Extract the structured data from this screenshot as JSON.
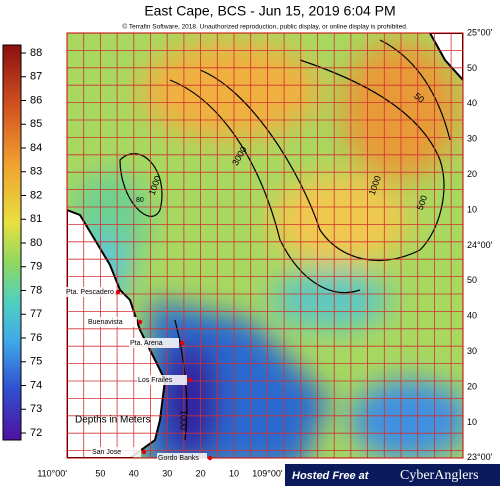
{
  "header": {
    "title": "East Cape, BCS - Jun 15, 2019 6:04 PM",
    "copyright": "© Terrafin Software,  2018.  Unauthorized reproduction, public display, or online display is prohibited."
  },
  "colorbar": {
    "ticks": [
      88,
      87,
      86,
      85,
      84,
      83,
      82,
      81,
      80,
      79,
      78,
      77,
      76,
      75,
      74,
      73,
      72
    ]
  },
  "lat_labels": [
    "25°00'",
    "50",
    "40",
    "30",
    "20",
    "10",
    "24°00'",
    "50",
    "40",
    "30",
    "20",
    "10",
    "23°00'"
  ],
  "lon_labels": [
    "110°00'",
    "50",
    "40",
    "30",
    "20",
    "10",
    "109°00'"
  ],
  "places": [
    "Pta. Pescadero",
    "Buenavista",
    "Pta. Arena",
    "Los Frailes",
    "San Jose",
    "Gordo Banks"
  ],
  "contour_labels": [
    "1000",
    "3000",
    "50",
    "1000",
    "500",
    "1000",
    "80"
  ],
  "legend_note": "Depths in Meters",
  "banner": {
    "prefix": "Hosted Free at",
    "brand": "CyberAnglers"
  }
}
